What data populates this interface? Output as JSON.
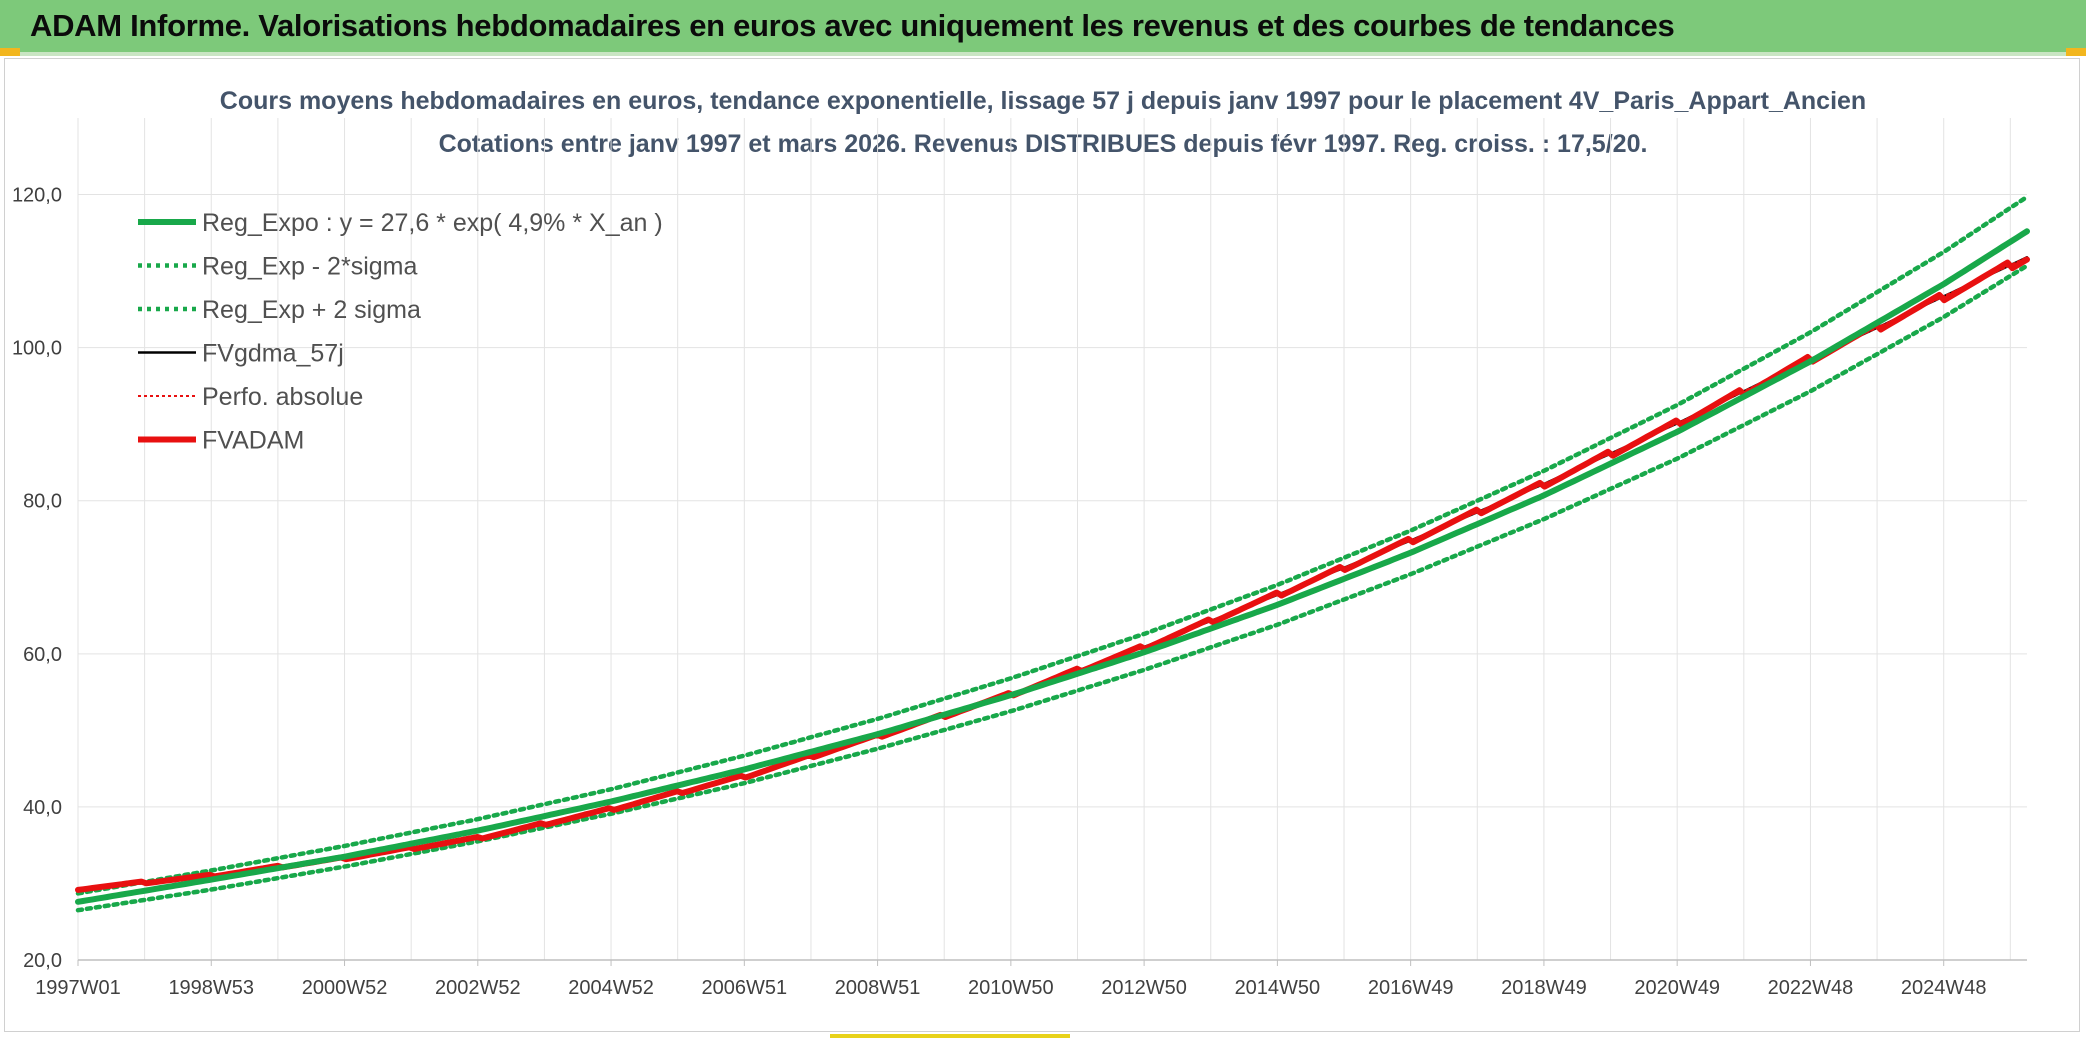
{
  "banner": {
    "title": "ADAM Informe. Valorisations hebdomadaires en euros avec uniquement les revenus et des courbes de tendances"
  },
  "colors": {
    "banner_bg": "#7dc97a",
    "trend_green": "#18a84a",
    "fvadam_red": "#e81010",
    "fvgdma_black": "#000000",
    "perfo_red": "#e81010",
    "grid": "#e3e3e3",
    "title_text": "#44546a"
  },
  "chart_data": {
    "type": "line",
    "title": "Cours moyens hebdomadaires en euros, tendance exponentielle, lissage 57 j depuis janv 1997 pour le placement 4V_Paris_Appart_Ancien",
    "subtitle": "Cotations entre janv 1997 et mars 2026. Revenus DISTRIBUES depuis févr 1997. Reg. croiss. : 17,5/20.",
    "xlabel": "",
    "ylabel": "",
    "ylim": [
      20,
      130
    ],
    "xlim": [
      1997.0,
      2026.25
    ],
    "y_ticks": [
      "20,0",
      "40,0",
      "60,0",
      "80,0",
      "100,0",
      "120,0"
    ],
    "x_ticks": [
      {
        "label": "1997W01",
        "x": 1997.0
      },
      {
        "label": "1998W53",
        "x": 1999.0
      },
      {
        "label": "2000W52",
        "x": 2001.0
      },
      {
        "label": "2002W52",
        "x": 2003.0
      },
      {
        "label": "2004W52",
        "x": 2005.0
      },
      {
        "label": "2006W51",
        "x": 2007.0
      },
      {
        "label": "2008W51",
        "x": 2009.0
      },
      {
        "label": "2010W50",
        "x": 2011.0
      },
      {
        "label": "2012W50",
        "x": 2013.0
      },
      {
        "label": "2014W50",
        "x": 2015.0
      },
      {
        "label": "2016W49",
        "x": 2017.0
      },
      {
        "label": "2018W49",
        "x": 2019.0
      },
      {
        "label": "2020W49",
        "x": 2021.0
      },
      {
        "label": "2022W48",
        "x": 2023.0
      },
      {
        "label": "2024W48",
        "x": 2025.0
      }
    ],
    "grid": true,
    "legend_position": "top-left",
    "series": [
      {
        "name": "Reg_Expo : y = 27,6 * exp( 4,9% *  X_an )",
        "style": "solid-thick",
        "color": "#18a84a",
        "x": [
          1997.0,
          1999.0,
          2001.0,
          2003.0,
          2005.0,
          2007.0,
          2009.0,
          2011.0,
          2013.0,
          2015.0,
          2017.0,
          2019.0,
          2021.0,
          2023.0,
          2025.0,
          2026.25
        ],
        "y": [
          27.6,
          30.5,
          33.5,
          36.9,
          40.7,
          44.9,
          49.5,
          54.6,
          60.2,
          66.4,
          73.2,
          80.7,
          89.0,
          98.2,
          108.3,
          115.2
        ]
      },
      {
        "name": "Reg_Exp - 2*sigma",
        "style": "dotted",
        "color": "#18a84a",
        "x": [
          1997.0,
          1999.0,
          2001.0,
          2003.0,
          2005.0,
          2007.0,
          2009.0,
          2011.0,
          2013.0,
          2015.0,
          2017.0,
          2019.0,
          2021.0,
          2023.0,
          2025.0,
          2026.25
        ],
        "y": [
          26.5,
          29.2,
          32.2,
          35.5,
          39.1,
          43.1,
          47.6,
          52.5,
          57.9,
          63.8,
          70.4,
          77.6,
          85.5,
          94.3,
          104.0,
          110.7
        ]
      },
      {
        "name": "Reg_Exp + 2 sigma",
        "style": "dotted",
        "color": "#18a84a",
        "x": [
          1997.0,
          1999.0,
          2001.0,
          2003.0,
          2005.0,
          2007.0,
          2009.0,
          2011.0,
          2013.0,
          2015.0,
          2017.0,
          2019.0,
          2021.0,
          2023.0,
          2025.0,
          2026.25
        ],
        "y": [
          28.7,
          31.7,
          34.9,
          38.4,
          42.3,
          46.7,
          51.5,
          56.8,
          62.6,
          69.0,
          76.1,
          83.9,
          92.5,
          102.0,
          112.5,
          119.7
        ]
      },
      {
        "name": "FVgdma_57j",
        "style": "solid",
        "color": "#000000",
        "x": [
          1997.0,
          1999.0,
          2001.0,
          2003.0,
          2005.0,
          2007.0,
          2009.0,
          2011.0,
          2013.0,
          2015.0,
          2017.0,
          2019.0,
          2021.0,
          2023.0,
          2025.0,
          2026.25
        ],
        "y": [
          29.3,
          31.0,
          33.3,
          35.9,
          39.7,
          44.0,
          49.2,
          54.7,
          60.9,
          67.7,
          74.8,
          82.2,
          90.1,
          98.5,
          106.7,
          111.8
        ]
      },
      {
        "name": "Perfo. absolue",
        "style": "dotted-thin",
        "color": "#e81010",
        "x": [
          1997.0,
          1999.0,
          2001.0,
          2003.0,
          2005.0,
          2007.0,
          2009.0,
          2011.0,
          2013.0,
          2015.0,
          2017.0,
          2019.0,
          2021.0,
          2023.0,
          2025.0,
          2026.25
        ],
        "y": [
          29.3,
          31.0,
          33.3,
          35.9,
          39.7,
          44.0,
          49.2,
          54.7,
          60.9,
          67.7,
          74.8,
          82.2,
          90.1,
          98.5,
          106.7,
          111.8
        ]
      },
      {
        "name": "FVADAM",
        "style": "solid-thick",
        "color": "#e81010",
        "x": [
          1997.0,
          1999.0,
          2001.0,
          2003.0,
          2005.0,
          2007.0,
          2009.0,
          2011.0,
          2013.0,
          2015.0,
          2017.0,
          2019.0,
          2021.0,
          2023.0,
          2025.0,
          2026.25
        ],
        "y": [
          29.3,
          31.0,
          33.3,
          35.9,
          39.7,
          44.0,
          49.2,
          54.7,
          60.9,
          67.7,
          74.8,
          82.2,
          90.1,
          98.5,
          106.7,
          111.8
        ]
      }
    ]
  }
}
